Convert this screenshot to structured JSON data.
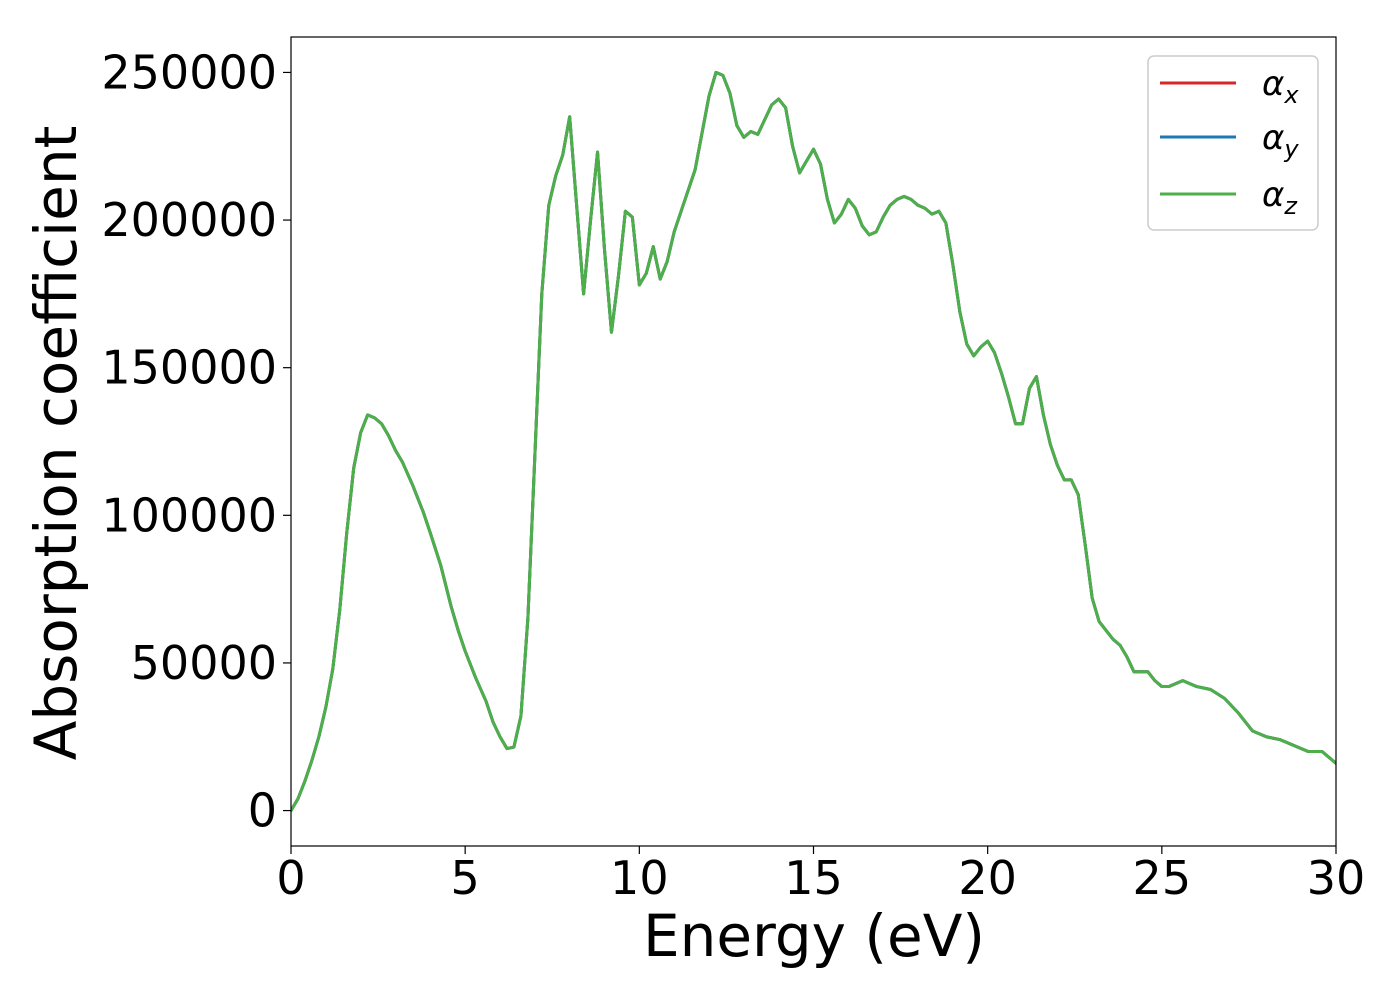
{
  "chart_data": {
    "type": "line",
    "title": "",
    "xlabel": "Energy (eV)",
    "ylabel": "Absorption coefficient",
    "xlim": [
      0,
      30
    ],
    "ylim": [
      -12000,
      262000
    ],
    "xticks": [
      0,
      5,
      10,
      15,
      20,
      25,
      30
    ],
    "yticks": [
      0,
      50000,
      100000,
      150000,
      200000,
      250000
    ],
    "xtick_labels": [
      "0",
      "5",
      "10",
      "15",
      "20",
      "25",
      "30"
    ],
    "ytick_labels": [
      "0",
      "50000",
      "100000",
      "150000",
      "200000",
      "250000"
    ],
    "grid": false,
    "legend": {
      "position": "top-right",
      "entries": [
        {
          "symbol": "α",
          "subscript": "x",
          "color": "#d62728"
        },
        {
          "symbol": "α",
          "subscript": "y",
          "color": "#1f77b4"
        },
        {
          "symbol": "α",
          "subscript": "z",
          "color": "#4daf4a"
        }
      ]
    },
    "x": [
      0,
      0.2,
      0.4,
      0.6,
      0.8,
      1.0,
      1.2,
      1.4,
      1.6,
      1.8,
      2.0,
      2.2,
      2.4,
      2.6,
      2.8,
      3.0,
      3.2,
      3.5,
      3.8,
      4.0,
      4.3,
      4.6,
      4.8,
      5.0,
      5.3,
      5.6,
      5.8,
      6.0,
      6.2,
      6.4,
      6.6,
      6.8,
      7.0,
      7.2,
      7.4,
      7.6,
      7.8,
      8.0,
      8.2,
      8.4,
      8.6,
      8.8,
      9.0,
      9.2,
      9.4,
      9.6,
      9.8,
      10.0,
      10.2,
      10.4,
      10.6,
      10.8,
      11.0,
      11.2,
      11.6,
      12.0,
      12.2,
      12.4,
      12.6,
      12.8,
      13.0,
      13.2,
      13.4,
      13.6,
      13.8,
      14.0,
      14.2,
      14.4,
      14.6,
      14.8,
      15.0,
      15.2,
      15.4,
      15.6,
      15.8,
      16.0,
      16.2,
      16.4,
      16.6,
      16.8,
      17.0,
      17.2,
      17.4,
      17.6,
      17.8,
      18.0,
      18.2,
      18.4,
      18.6,
      18.8,
      19.0,
      19.2,
      19.4,
      19.6,
      19.8,
      20.0,
      20.2,
      20.4,
      20.6,
      20.8,
      21.0,
      21.2,
      21.4,
      21.6,
      21.8,
      22.0,
      22.2,
      22.4,
      22.6,
      22.8,
      23.0,
      23.2,
      23.4,
      23.6,
      23.8,
      24.0,
      24.2,
      24.4,
      24.6,
      24.8,
      25.0,
      25.2,
      25.4,
      25.6,
      25.8,
      26.0,
      26.4,
      26.8,
      27.2,
      27.6,
      28.0,
      28.4,
      28.8,
      29.2,
      29.6,
      30.0
    ],
    "series": [
      {
        "name": "α_x",
        "color": "#d62728",
        "values": [
          0,
          4000,
          10000,
          17000,
          25000,
          35000,
          48000,
          68000,
          94000,
          116000,
          128000,
          134000,
          133000,
          131000,
          127000,
          122000,
          118000,
          110000,
          101000,
          94000,
          83000,
          69000,
          61000,
          54000,
          45000,
          37000,
          30000,
          25000,
          21000,
          21500,
          32000,
          65000,
          120000,
          175000,
          205000,
          215000,
          222000,
          235000,
          205000,
          175000,
          200000,
          223000,
          190000,
          162000,
          181000,
          203000,
          201000,
          178000,
          182000,
          191000,
          180000,
          186000,
          196000,
          203000,
          217000,
          242000,
          250000,
          249000,
          243000,
          232000,
          228000,
          230000,
          229000,
          234000,
          239000,
          241000,
          238000,
          225000,
          216000,
          220000,
          224000,
          219000,
          207000,
          199000,
          202000,
          207000,
          204000,
          198000,
          195000,
          196000,
          201000,
          205000,
          207000,
          208000,
          207000,
          205000,
          204000,
          202000,
          203000,
          199000,
          185000,
          169000,
          158000,
          154000,
          157000,
          159000,
          155000,
          148000,
          140000,
          131000,
          131000,
          143000,
          147000,
          134000,
          124000,
          117000,
          112000,
          112000,
          107000,
          90000,
          72000,
          64000,
          61000,
          58000,
          56000,
          52000,
          47000,
          47000,
          47000,
          44000,
          42000,
          42000,
          43000,
          44000,
          43000,
          42000,
          41000,
          38000,
          33000,
          27000,
          25000,
          24000,
          22000,
          20000,
          20000,
          16000
        ]
      },
      {
        "name": "α_y",
        "color": "#1f77b4",
        "values": [
          0,
          4000,
          10000,
          17000,
          25000,
          35000,
          48000,
          68000,
          94000,
          116000,
          128000,
          134000,
          133000,
          131000,
          127000,
          122000,
          118000,
          110000,
          101000,
          94000,
          83000,
          69000,
          61000,
          54000,
          45000,
          37000,
          30000,
          25000,
          21000,
          21500,
          32000,
          65000,
          120000,
          175000,
          205000,
          215000,
          222000,
          235000,
          205000,
          175000,
          200000,
          223000,
          190000,
          162000,
          181000,
          203000,
          201000,
          178000,
          182000,
          191000,
          180000,
          186000,
          196000,
          203000,
          217000,
          242000,
          250000,
          249000,
          243000,
          232000,
          228000,
          230000,
          229000,
          234000,
          239000,
          241000,
          238000,
          225000,
          216000,
          220000,
          224000,
          219000,
          207000,
          199000,
          202000,
          207000,
          204000,
          198000,
          195000,
          196000,
          201000,
          205000,
          207000,
          208000,
          207000,
          205000,
          204000,
          202000,
          203000,
          199000,
          185000,
          169000,
          158000,
          154000,
          157000,
          159000,
          155000,
          148000,
          140000,
          131000,
          131000,
          143000,
          147000,
          134000,
          124000,
          117000,
          112000,
          112000,
          107000,
          90000,
          72000,
          64000,
          61000,
          58000,
          56000,
          52000,
          47000,
          47000,
          47000,
          44000,
          42000,
          42000,
          43000,
          44000,
          43000,
          42000,
          41000,
          38000,
          33000,
          27000,
          25000,
          24000,
          22000,
          20000,
          20000,
          16000
        ]
      },
      {
        "name": "α_z",
        "color": "#4daf4a",
        "values": [
          0,
          4000,
          10000,
          17000,
          25000,
          35000,
          48000,
          68000,
          94000,
          116000,
          128000,
          134000,
          133000,
          131000,
          127000,
          122000,
          118000,
          110000,
          101000,
          94000,
          83000,
          69000,
          61000,
          54000,
          45000,
          37000,
          30000,
          25000,
          21000,
          21500,
          32000,
          65000,
          120000,
          175000,
          205000,
          215000,
          222000,
          235000,
          205000,
          175000,
          200000,
          223000,
          190000,
          162000,
          181000,
          203000,
          201000,
          178000,
          182000,
          191000,
          180000,
          186000,
          196000,
          203000,
          217000,
          242000,
          250000,
          249000,
          243000,
          232000,
          228000,
          230000,
          229000,
          234000,
          239000,
          241000,
          238000,
          225000,
          216000,
          220000,
          224000,
          219000,
          207000,
          199000,
          202000,
          207000,
          204000,
          198000,
          195000,
          196000,
          201000,
          205000,
          207000,
          208000,
          207000,
          205000,
          204000,
          202000,
          203000,
          199000,
          185000,
          169000,
          158000,
          154000,
          157000,
          159000,
          155000,
          148000,
          140000,
          131000,
          131000,
          143000,
          147000,
          134000,
          124000,
          117000,
          112000,
          112000,
          107000,
          90000,
          72000,
          64000,
          61000,
          58000,
          56000,
          52000,
          47000,
          47000,
          47000,
          44000,
          42000,
          42000,
          43000,
          44000,
          43000,
          42000,
          41000,
          38000,
          33000,
          27000,
          25000,
          24000,
          22000,
          20000,
          20000,
          16000
        ]
      }
    ]
  }
}
